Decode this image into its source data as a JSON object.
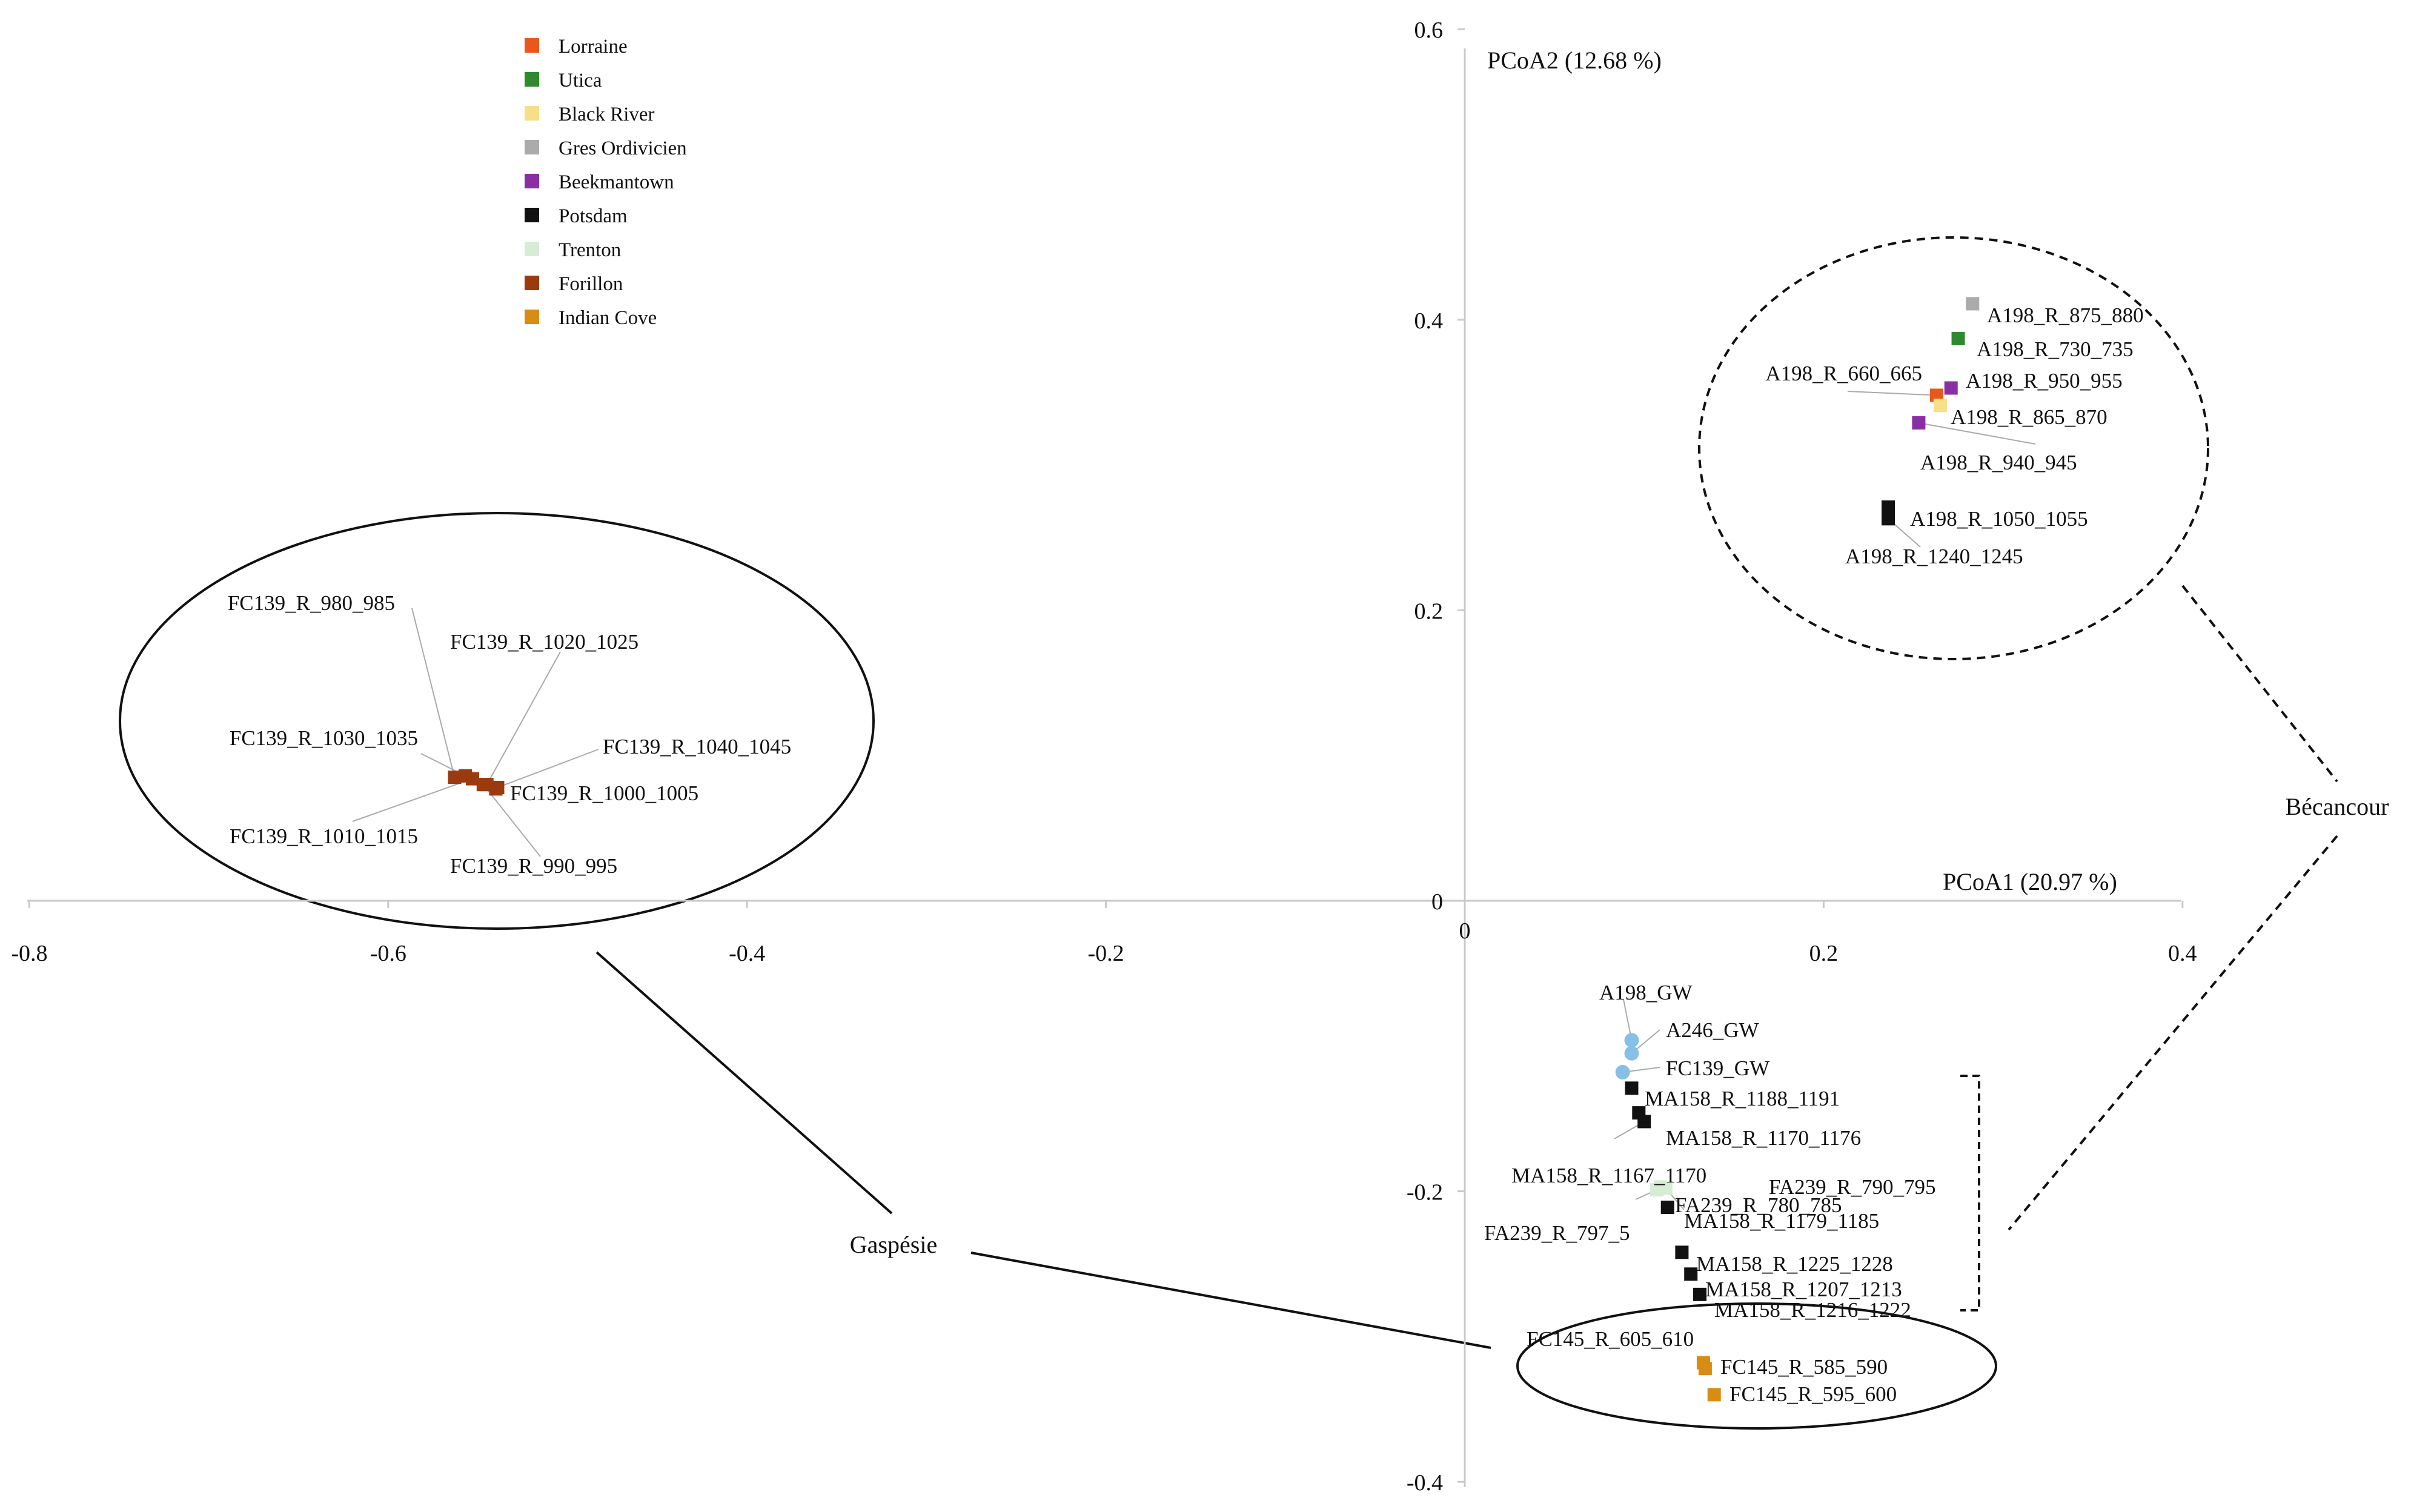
{
  "chart_data": {
    "type": "scatter",
    "title": "",
    "xlabel": "PCoA1 (20.97 %)",
    "ylabel": "PCoA2 (12.68 %)",
    "xlim": [
      -0.8,
      0.4
    ],
    "ylim": [
      -0.4,
      0.6
    ],
    "x_ticks": [
      {
        "value": -0.8,
        "label": "-0.8"
      },
      {
        "value": -0.6,
        "label": "-0.6"
      },
      {
        "value": -0.4,
        "label": "-0.4"
      },
      {
        "value": -0.2,
        "label": "-0.2"
      },
      {
        "value": 0,
        "label": "0"
      },
      {
        "value": 0.2,
        "label": "0.2"
      },
      {
        "value": 0.4,
        "label": "0.4"
      }
    ],
    "y_ticks": [
      {
        "value": -0.4,
        "label": "-0.4"
      },
      {
        "value": -0.2,
        "label": "-0.2"
      },
      {
        "value": 0,
        "label": "0"
      },
      {
        "value": 0.2,
        "label": "0.2"
      },
      {
        "value": 0.4,
        "label": "0.4"
      },
      {
        "value": 0.6,
        "label": "0.6"
      }
    ],
    "grid": false,
    "legend": {
      "position": "top-left",
      "items": [
        {
          "name": "Lorraine",
          "color": "#e8581c"
        },
        {
          "name": "Utica",
          "color": "#2f8a2f"
        },
        {
          "name": "Black River",
          "color": "#f7df8a"
        },
        {
          "name": "Gres Ordivicien",
          "color": "#ababab"
        },
        {
          "name": "Beekmantown",
          "color": "#8a2fa3"
        },
        {
          "name": "Potsdam",
          "color": "#111111"
        },
        {
          "name": "Trenton",
          "color": "#d6ecd4"
        },
        {
          "name": "Forillon",
          "color": "#9c3a0f"
        },
        {
          "name": "Indian Cove",
          "color": "#d98c14"
        }
      ]
    },
    "group_colors": {
      "GW": "#87c0e6"
    },
    "series": [
      {
        "name": "Lorraine",
        "points": [
          {
            "label": "A198_R_660_665",
            "x": 0.263,
            "y": 0.348
          }
        ]
      },
      {
        "name": "Utica",
        "points": [
          {
            "label": "A198_R_730_735",
            "x": 0.275,
            "y": 0.387
          }
        ]
      },
      {
        "name": "Black River",
        "points": [
          {
            "label": "A198_R_865_870",
            "x": 0.265,
            "y": 0.341
          }
        ]
      },
      {
        "name": "Gres Ordivicien",
        "points": [
          {
            "label": "A198_R_875_880",
            "x": 0.283,
            "y": 0.411
          }
        ]
      },
      {
        "name": "Beekmantown",
        "points": [
          {
            "label": "A198_R_950_955",
            "x": 0.271,
            "y": 0.353
          },
          {
            "label": "A198_R_940_945",
            "x": 0.253,
            "y": 0.329
          }
        ]
      },
      {
        "name": "Potsdam",
        "points": [
          {
            "label": "A198_R_1050_1055",
            "x": 0.236,
            "y": 0.271
          },
          {
            "label": "A198_R_1240_1245",
            "x": 0.236,
            "y": 0.263
          },
          {
            "label": "MA158_R_1188_1191",
            "x": 0.093,
            "y": -0.129
          },
          {
            "label": "MA158_R_1170_1176",
            "x": 0.097,
            "y": -0.146
          },
          {
            "label": "MA158_R_1167_1170",
            "x": 0.1,
            "y": -0.152
          },
          {
            "label": "MA158_R_1179_1185",
            "x": 0.113,
            "y": -0.211
          },
          {
            "label": "MA158_R_1225_1228",
            "x": 0.121,
            "y": -0.242
          },
          {
            "label": "MA158_R_1207_1213",
            "x": 0.126,
            "y": -0.257
          },
          {
            "label": "MA158_R_1216_1222",
            "x": 0.131,
            "y": -0.271
          }
        ]
      },
      {
        "name": "Trenton",
        "points": [
          {
            "label": "FA239_R_790_795",
            "x": 0.112,
            "y": -0.198
          },
          {
            "label": "FA239_R_780_785",
            "x": 0.109,
            "y": -0.197
          },
          {
            "label": "FA239_R_797_5",
            "x": 0.107,
            "y": -0.199
          }
        ]
      },
      {
        "name": "Forillon",
        "points": [
          {
            "label": "FC139_R_980_985",
            "x": -0.563,
            "y": 0.085
          },
          {
            "label": "FC139_R_1020_1025",
            "x": -0.545,
            "y": 0.08
          },
          {
            "label": "FC139_R_1030_1035",
            "x": -0.557,
            "y": 0.086
          },
          {
            "label": "FC139_R_1040_1045",
            "x": -0.539,
            "y": 0.078
          },
          {
            "label": "FC139_R_1000_1005",
            "x": -0.54,
            "y": 0.077
          },
          {
            "label": "FC139_R_1010_1015",
            "x": -0.553,
            "y": 0.084
          },
          {
            "label": "FC139_R_990_995",
            "x": -0.547,
            "y": 0.08
          }
        ]
      },
      {
        "name": "Indian Cove",
        "points": [
          {
            "label": "FC145_R_605_610",
            "x": 0.133,
            "y": -0.318
          },
          {
            "label": "FC145_R_585_590",
            "x": 0.134,
            "y": -0.322
          },
          {
            "label": "FC145_R_595_600",
            "x": 0.139,
            "y": -0.34
          }
        ]
      },
      {
        "name": "GW",
        "marker": "circle",
        "points": [
          {
            "label": "A198_GW",
            "x": 0.093,
            "y": -0.096
          },
          {
            "label": "A246_GW",
            "x": 0.093,
            "y": -0.105
          },
          {
            "label": "FC139_GW",
            "x": 0.088,
            "y": -0.118
          }
        ]
      }
    ],
    "annotations": [
      {
        "text": "Bécancour",
        "placement": "right"
      },
      {
        "text": "Gaspésie",
        "placement": "lower-left"
      }
    ]
  }
}
